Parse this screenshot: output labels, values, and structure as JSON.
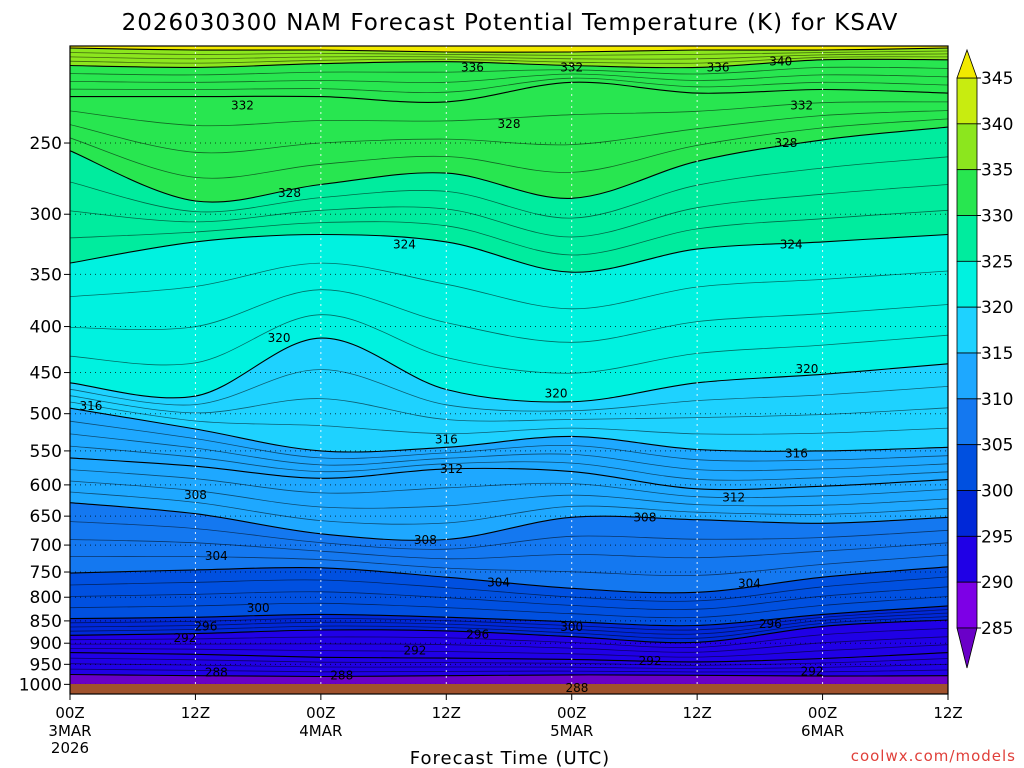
{
  "title": "2026030300 NAM Forecast Potential Temperature (K) for KSAV",
  "credit": "coolwx.com/models",
  "x_axis_title": "Forecast Time (UTC)",
  "colors": {
    "ground": "#a0522d",
    "contour": "#000000",
    "credit": "#e0403a",
    "bands": [
      "#6a00c8",
      "#7d00e6",
      "#2000e6",
      "#0028d8",
      "#0050e0",
      "#1478f0",
      "#1ea8ff",
      "#1ed2ff",
      "#00f2e0",
      "#00ec9e",
      "#28e650",
      "#8ce61e",
      "#c8ec10",
      "#f2ea00"
    ]
  },
  "chart_data": {
    "type": "heatmap",
    "title": "2026030300 NAM Forecast Potential Temperature (K) for KSAV",
    "xlabel": "Forecast Time (UTC)",
    "ylabel": "",
    "x_ticks": [
      {
        "hour": 0,
        "label": "00Z",
        "sub": [
          "3MAR",
          "2026"
        ]
      },
      {
        "hour": 12,
        "label": "12Z",
        "sub": []
      },
      {
        "hour": 24,
        "label": "00Z",
        "sub": [
          "4MAR"
        ]
      },
      {
        "hour": 36,
        "label": "12Z",
        "sub": []
      },
      {
        "hour": 48,
        "label": "00Z",
        "sub": [
          "5MAR"
        ]
      },
      {
        "hour": 60,
        "label": "12Z",
        "sub": []
      },
      {
        "hour": 72,
        "label": "00Z",
        "sub": [
          "6MAR"
        ]
      },
      {
        "hour": 84,
        "label": "12Z",
        "sub": []
      }
    ],
    "xlim": [
      0,
      84
    ],
    "y_ticks": [
      250,
      300,
      350,
      400,
      450,
      500,
      550,
      600,
      650,
      700,
      750,
      800,
      850,
      900,
      950,
      1000
    ],
    "y_scale": "log",
    "ylim": [
      1025,
      195
    ],
    "colorbar": {
      "levels": [
        285,
        290,
        295,
        300,
        305,
        310,
        315,
        320,
        325,
        330,
        335,
        340,
        345
      ],
      "extend": "both"
    },
    "contour_interval": 4,
    "contours": [
      {
        "value": 288,
        "pressures": [
          975,
          978,
          980,
          978,
          976,
          977,
          979,
          978
        ]
      },
      {
        "value": 292,
        "pressures": [
          922,
          926,
          933,
          935,
          938,
          944,
          936,
          922
        ]
      },
      {
        "value": 296,
        "pressures": [
          882,
          878,
          870,
          872,
          885,
          898,
          862,
          848
        ]
      },
      {
        "value": 300,
        "pressures": [
          845,
          842,
          836,
          842,
          852,
          860,
          836,
          818
        ]
      },
      {
        "value": 304,
        "pressures": [
          752,
          746,
          742,
          760,
          782,
          790,
          760,
          740
        ]
      },
      {
        "value": 308,
        "pressures": [
          628,
          646,
          680,
          690,
          652,
          656,
          662,
          652
        ]
      },
      {
        "value": 312,
        "pressures": [
          560,
          572,
          590,
          576,
          580,
          606,
          602,
          592
        ]
      },
      {
        "value": 316,
        "pressures": [
          493,
          520,
          550,
          545,
          530,
          548,
          550,
          545
        ]
      },
      {
        "value": 320,
        "pressures": [
          462,
          478,
          412,
          470,
          485,
          462,
          452,
          440
        ]
      },
      {
        "value": 324,
        "pressures": [
          340,
          322,
          316,
          322,
          348,
          328,
          322,
          316
        ]
      },
      {
        "value": 328,
        "pressures": [
          255,
          290,
          278,
          270,
          288,
          262,
          248,
          240
        ]
      },
      {
        "value": 332,
        "pressures": [
          222,
          222,
          222,
          225,
          214,
          220,
          218,
          220
        ]
      },
      {
        "value": 336,
        "pressures": [
          205,
          206,
          204,
          203,
          205,
          206,
          202,
          202
        ]
      },
      {
        "value": 340,
        "pressures": [
          196,
          197,
          197,
          198,
          198,
          197,
          197,
          196
        ]
      }
    ],
    "contour_labels": [
      {
        "text": "336",
        "hour": 38.5,
        "pres": 206
      },
      {
        "text": "332",
        "hour": 48,
        "pres": 206
      },
      {
        "text": "336",
        "hour": 62,
        "pres": 206
      },
      {
        "text": "340",
        "hour": 68,
        "pres": 203
      },
      {
        "text": "332",
        "hour": 16.5,
        "pres": 227
      },
      {
        "text": "328",
        "hour": 42,
        "pres": 238
      },
      {
        "text": "332",
        "hour": 70,
        "pres": 227
      },
      {
        "text": "328",
        "hour": 68.5,
        "pres": 250
      },
      {
        "text": "328",
        "hour": 21,
        "pres": 284
      },
      {
        "text": "324",
        "hour": 32,
        "pres": 324
      },
      {
        "text": "324",
        "hour": 69,
        "pres": 324
      },
      {
        "text": "320",
        "hour": 20,
        "pres": 412
      },
      {
        "text": "320",
        "hour": 70.5,
        "pres": 446
      },
      {
        "text": "320",
        "hour": 46.5,
        "pres": 475
      },
      {
        "text": "316",
        "hour": 2,
        "pres": 490
      },
      {
        "text": "316",
        "hour": 36,
        "pres": 534
      },
      {
        "text": "316",
        "hour": 69.5,
        "pres": 554
      },
      {
        "text": "312",
        "hour": 36.5,
        "pres": 576
      },
      {
        "text": "312",
        "hour": 63.5,
        "pres": 620
      },
      {
        "text": "308",
        "hour": 12,
        "pres": 616
      },
      {
        "text": "308",
        "hour": 55,
        "pres": 652
      },
      {
        "text": "308",
        "hour": 34,
        "pres": 691
      },
      {
        "text": "304",
        "hour": 14,
        "pres": 720
      },
      {
        "text": "304",
        "hour": 41,
        "pres": 770
      },
      {
        "text": "304",
        "hour": 65,
        "pres": 772
      },
      {
        "text": "300",
        "hour": 18,
        "pres": 822
      },
      {
        "text": "300",
        "hour": 48,
        "pres": 863
      },
      {
        "text": "296",
        "hour": 13,
        "pres": 862
      },
      {
        "text": "296",
        "hour": 39,
        "pres": 880
      },
      {
        "text": "296",
        "hour": 67,
        "pres": 857
      },
      {
        "text": "292",
        "hour": 11,
        "pres": 888
      },
      {
        "text": "292",
        "hour": 33,
        "pres": 917
      },
      {
        "text": "292",
        "hour": 55.5,
        "pres": 942
      },
      {
        "text": "292",
        "hour": 71,
        "pres": 967
      },
      {
        "text": "288",
        "hour": 14,
        "pres": 970
      },
      {
        "text": "288",
        "hour": 26,
        "pres": 978
      },
      {
        "text": "288",
        "hour": 48.5,
        "pres": 1010
      }
    ]
  }
}
